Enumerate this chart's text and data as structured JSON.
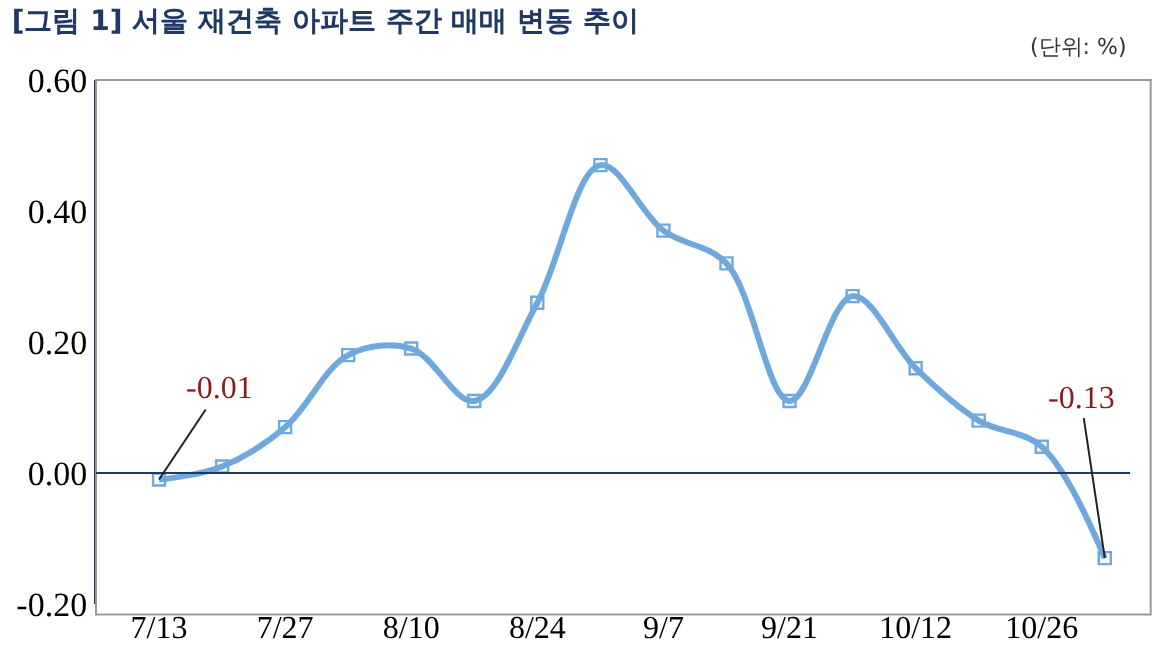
{
  "chart_data": {
    "type": "line",
    "title": "[그림 1] 서울 재건축 아파트 주간 매매 변동 추이",
    "annotations": [
      "(단위: %)"
    ],
    "categories": [
      "7/13",
      null,
      "7/27",
      null,
      "8/10",
      null,
      "8/24",
      null,
      "9/7",
      null,
      "9/21",
      null,
      "10/12",
      null,
      "10/26",
      null
    ],
    "series": [
      {
        "color": "#6fa8dc",
        "values": [
          -0.01,
          0.01,
          0.07,
          0.18,
          0.19,
          0.11,
          0.26,
          0.47,
          0.37,
          0.32,
          0.11,
          0.27,
          0.16,
          0.08,
          0.04,
          -0.13
        ],
        "value_labels": [
          "-0.01",
          null,
          null,
          null,
          null,
          null,
          null,
          null,
          null,
          null,
          null,
          null,
          null,
          null,
          null,
          "-0.13"
        ]
      }
    ],
    "ylim": [
      -0.2,
      0.6
    ],
    "yticks": [
      {
        "value": -0.2,
        "label": "-0.20"
      },
      {
        "value": 0,
        "label": "0.00"
      },
      {
        "value": 0.2,
        "label": "0.20"
      },
      {
        "value": 0.4,
        "label": "0.40"
      },
      {
        "value": 0.6,
        "label": "0.60"
      }
    ],
    "ref_lines": [
      {
        "axis": "y",
        "value": 0,
        "color": "#1f3864"
      }
    ],
    "marker": "square",
    "line_style": "solid"
  }
}
